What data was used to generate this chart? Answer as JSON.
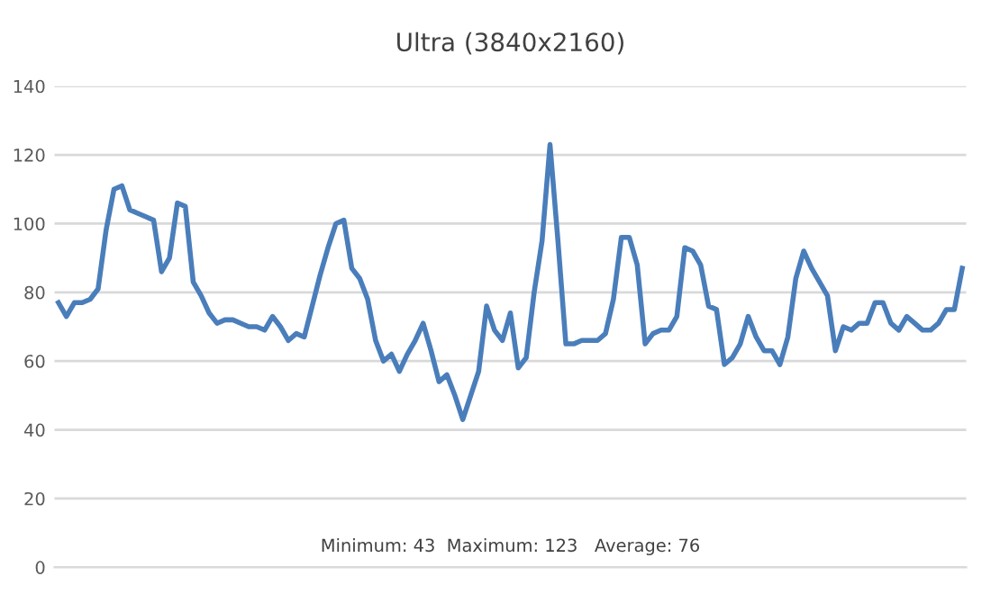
{
  "chart_data": {
    "type": "line",
    "title": "Ultra (3840x2160)",
    "annotations": [
      "Minimum: 43  Maximum: 123   Average: 76"
    ],
    "series": [
      {
        "color": "#4a7ebb",
        "values": [
          77,
          73,
          77,
          77,
          78,
          81,
          98,
          110,
          111,
          104,
          103,
          102,
          101,
          86,
          90,
          106,
          105,
          83,
          79,
          74,
          71,
          72,
          72,
          71,
          70,
          70,
          69,
          73,
          70,
          66,
          68,
          67,
          76,
          85,
          93,
          100,
          101,
          87,
          84,
          78,
          66,
          60,
          62,
          57,
          62,
          66,
          71,
          63,
          54,
          56,
          50,
          43,
          50,
          57,
          76,
          69,
          66,
          74,
          58,
          61,
          80,
          95,
          123,
          95,
          65,
          65,
          66,
          66,
          66,
          68,
          78,
          96,
          96,
          88,
          65,
          68,
          69,
          69,
          73,
          93,
          92,
          88,
          76,
          75,
          59,
          61,
          65,
          73,
          67,
          63,
          63,
          59,
          67,
          84,
          92,
          87,
          83,
          79,
          63,
          70,
          69,
          71,
          71,
          77,
          77,
          71,
          69,
          73,
          71,
          69,
          69,
          71,
          75,
          75,
          87
        ]
      }
    ],
    "ylim": [
      0,
      140
    ],
    "yticks": [
      0,
      20,
      40,
      60,
      80,
      100,
      120,
      140
    ],
    "grid": "y",
    "line_style": "solid",
    "marker": "none"
  }
}
